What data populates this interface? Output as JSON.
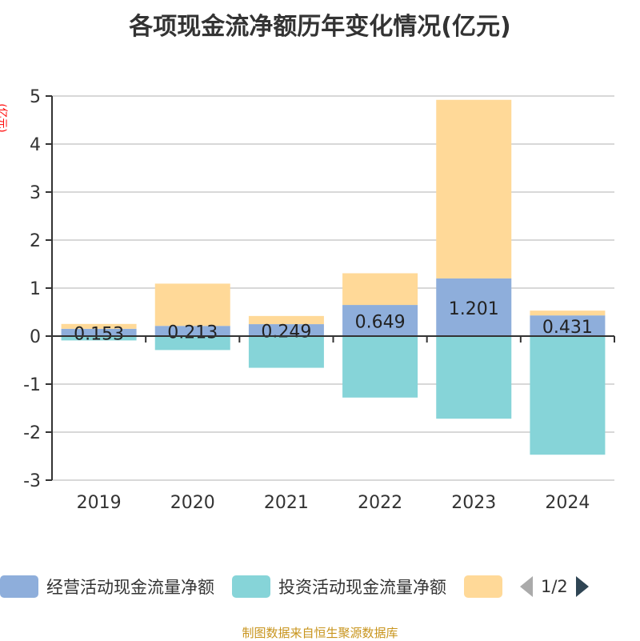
{
  "title": "各项现金流净额历年变化情况(亿元)",
  "source": "制图数据来自恒生聚源数据库",
  "legend_page": "1/2",
  "chart_data": {
    "type": "bar",
    "stacked": true,
    "title": "各项现金流净额历年变化情况(亿元)",
    "ylabel": "(亿元)",
    "xlabel": "",
    "ylim": [
      -3,
      5
    ],
    "yticks": [
      -3,
      -2,
      -1,
      0,
      1,
      2,
      3,
      4,
      5
    ],
    "categories": [
      "2019",
      "2020",
      "2021",
      "2022",
      "2023",
      "2024"
    ],
    "series": [
      {
        "name": "经营活动现金流量净额",
        "color": "#8eaedb",
        "values": [
          0.153,
          0.213,
          0.249,
          0.649,
          1.201,
          0.431
        ],
        "labels": [
          "0.153",
          "0.213",
          "0.249",
          "0.649",
          "1.201",
          "0.431"
        ]
      },
      {
        "name": "投资活动现金流量净额",
        "color": "#86d4d8",
        "values": [
          -0.09,
          -0.29,
          -0.66,
          -1.28,
          -1.72,
          -2.47
        ]
      },
      {
        "name": "",
        "color": "#ffd998",
        "values": [
          0.1,
          0.88,
          0.17,
          0.66,
          3.72,
          0.1
        ]
      }
    ],
    "grid": true,
    "legend_position": "bottom"
  }
}
